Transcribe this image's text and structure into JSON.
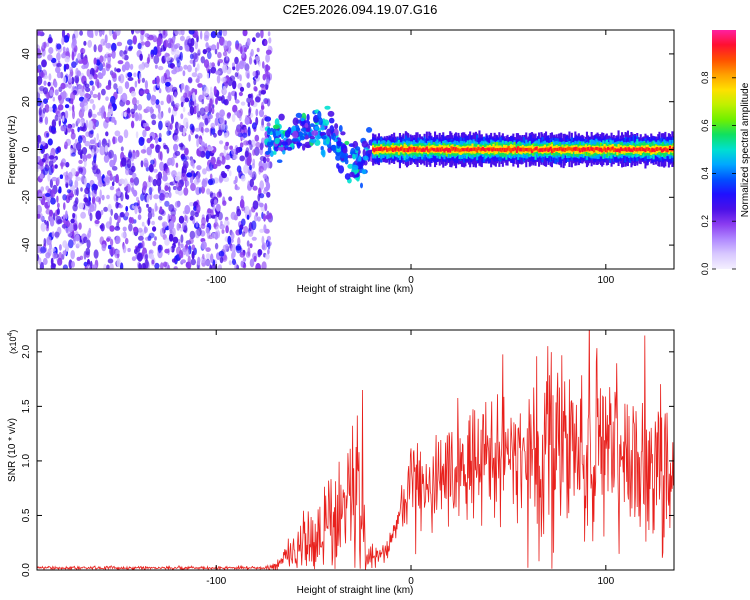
{
  "title": "C2E5.2026.094.19.07.G16",
  "colors": {
    "snr_line": "#e8201c",
    "cmap": [
      "#f4f0ff",
      "#d8c8ff",
      "#b088ff",
      "#8a3cf0",
      "#4a10e8",
      "#2010ff",
      "#0050ff",
      "#00a8ff",
      "#00e0d0",
      "#10e060",
      "#70f000",
      "#c0f000",
      "#ffe000",
      "#ffa000",
      "#ff5000",
      "#ff1030",
      "#ff20a0"
    ]
  },
  "chart_data": [
    {
      "type": "heatmap",
      "xlabel": "Height of straight line (km)",
      "ylabel": "Frequency (Hz)",
      "xlim": [
        -192,
        135
      ],
      "ylim": [
        -50,
        50
      ],
      "xticks": [
        "-100",
        "0",
        "100"
      ],
      "xtick_values": [
        -100,
        0,
        100
      ],
      "yticks": [
        "-40",
        "-20",
        "0",
        "20",
        "40"
      ],
      "ytick_values": [
        -40,
        -20,
        0,
        20,
        40
      ],
      "regions": [
        {
          "name": "noise",
          "x_range": [
            -192,
            -72
          ],
          "f_range": [
            -50,
            50
          ]
        },
        {
          "name": "transition",
          "x_range": [
            -72,
            -20
          ],
          "f_center": [
            [
              -72,
              3
            ],
            [
              -60,
              6
            ],
            [
              -50,
              8
            ],
            [
              -40,
              6
            ],
            [
              -34,
              -3
            ],
            [
              -28,
              -6
            ],
            [
              -20,
              0
            ]
          ]
        },
        {
          "name": "carrier",
          "x_range": [
            -20,
            135
          ],
          "f_center": 0,
          "peak_amplitude": 0.95
        }
      ],
      "colorbar": {
        "label": "Normalized spectral amplitude",
        "range": [
          0,
          1
        ],
        "ticks": [
          "0.0",
          "0.2",
          "0.4",
          "0.6",
          "0.8"
        ],
        "tick_values": [
          0.0,
          0.2,
          0.4,
          0.6,
          0.8
        ]
      }
    },
    {
      "type": "line",
      "xlabel": "Height of straight line (km)",
      "ylabel": "SNR (10 * v/v)",
      "scale_note": "(x10",
      "scale_exp": "4",
      "xlim": [
        -192,
        135
      ],
      "ylim": [
        0,
        2.2
      ],
      "xticks": [
        "-100",
        "0",
        "100"
      ],
      "xtick_values": [
        -100,
        0,
        100
      ],
      "yticks": [
        "0.0",
        "0.5",
        "1.0",
        "1.5",
        "2.0"
      ],
      "ytick_values": [
        0.0,
        0.5,
        1.0,
        1.5,
        2.0
      ],
      "series": [
        {
          "name": "SNR",
          "envelope_x": [
            -192,
            -75,
            -68,
            -60,
            -50,
            -40,
            -32,
            -26,
            -23,
            -12,
            -5,
            0,
            10,
            25,
            40,
            55,
            70,
            85,
            100,
            115,
            128,
            135
          ],
          "envelope_mean": [
            0.02,
            0.02,
            0.05,
            0.2,
            0.3,
            0.45,
            0.6,
            0.7,
            0.15,
            0.15,
            0.6,
            0.75,
            0.8,
            0.95,
            1.05,
            1.1,
            1.12,
            1.1,
            1.05,
            1.0,
            0.95,
            0.9
          ],
          "peak_values": [
            {
              "x": -25,
              "y": 1.65
            },
            {
              "x": 120,
              "y": 2.15
            }
          ]
        }
      ]
    }
  ]
}
